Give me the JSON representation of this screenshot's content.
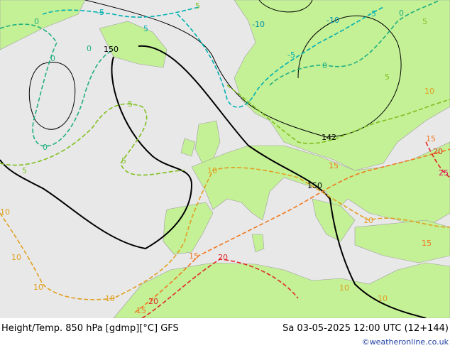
{
  "header": {
    "title": "Height/Temp. 850 hPa [gdmp][°C] GFS",
    "valid": "Sa 03-05-2025 12:00 UTC (12+144)"
  },
  "footer": {
    "credit": "©weatheronline.co.uk"
  },
  "map": {
    "height_labels": [
      "150",
      "142",
      "150"
    ],
    "temp_labels": [
      "0",
      "-5",
      "5",
      "-10",
      "-10",
      "-5",
      "0",
      "5",
      "0",
      "5",
      "0",
      "-5",
      "0",
      "5",
      "10",
      "5",
      "5",
      "0",
      "5",
      "10",
      "10",
      "10",
      "10",
      "10",
      "15",
      "20",
      "20",
      "15",
      "15",
      "10",
      "15",
      "10",
      "10",
      "15",
      "20",
      "25"
    ]
  }
}
